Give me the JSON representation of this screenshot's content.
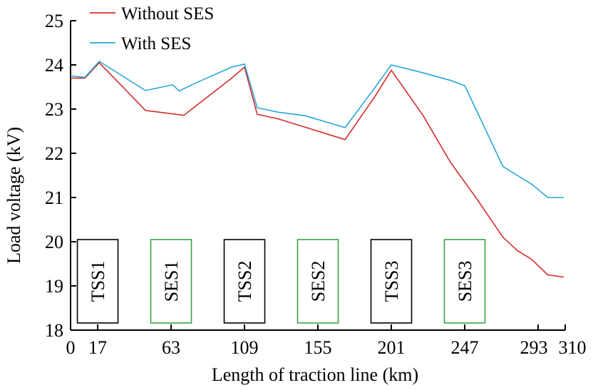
{
  "chart_data": {
    "type": "line",
    "xlabel": "Length of traction line (km)",
    "ylabel": "Load voltage (kV)",
    "xlim": [
      0,
      310
    ],
    "ylim": [
      18,
      25
    ],
    "xticks": [
      0,
      17,
      63,
      109,
      155,
      201,
      247,
      293,
      310
    ],
    "yticks": [
      18,
      19,
      20,
      21,
      22,
      23,
      24,
      25
    ],
    "grid": false,
    "legend_position": "top-left",
    "series": [
      {
        "name": "Without SES",
        "color": "#d62b2b",
        "x": [
          0,
          9,
          18,
          47,
          71,
          101,
          109,
          117,
          130,
          147,
          172,
          191,
          201,
          221,
          238,
          254,
          271,
          280,
          289,
          299,
          309
        ],
        "y": [
          23.7,
          23.7,
          24.05,
          22.97,
          22.86,
          23.7,
          23.95,
          22.88,
          22.78,
          22.59,
          22.31,
          23.3,
          23.88,
          22.85,
          21.8,
          21.0,
          20.1,
          19.8,
          19.6,
          19.25,
          19.2
        ]
      },
      {
        "name": "With SES",
        "color": "#27a6dc",
        "x": [
          0,
          9,
          18,
          47,
          64,
          68,
          79,
          101,
          109,
          117,
          130,
          147,
          172,
          191,
          201,
          221,
          238,
          247,
          254,
          271,
          280,
          289,
          299,
          309
        ],
        "y": [
          23.75,
          23.72,
          24.08,
          23.42,
          23.55,
          23.41,
          23.6,
          23.95,
          24.02,
          23.03,
          22.93,
          22.85,
          22.58,
          23.5,
          24.0,
          23.82,
          23.65,
          23.53,
          23.0,
          21.7,
          21.5,
          21.3,
          21.0,
          21.0
        ]
      }
    ],
    "annotations": [
      {
        "label": "TSS1",
        "x": 17,
        "color": "#000000"
      },
      {
        "label": "SES1",
        "x": 63,
        "color": "#3aa14a"
      },
      {
        "label": "TSS2",
        "x": 109,
        "color": "#000000"
      },
      {
        "label": "SES2",
        "x": 155,
        "color": "#3aa14a"
      },
      {
        "label": "TSS3",
        "x": 201,
        "color": "#000000"
      },
      {
        "label": "SES3",
        "x": 247,
        "color": "#3aa14a"
      }
    ]
  }
}
